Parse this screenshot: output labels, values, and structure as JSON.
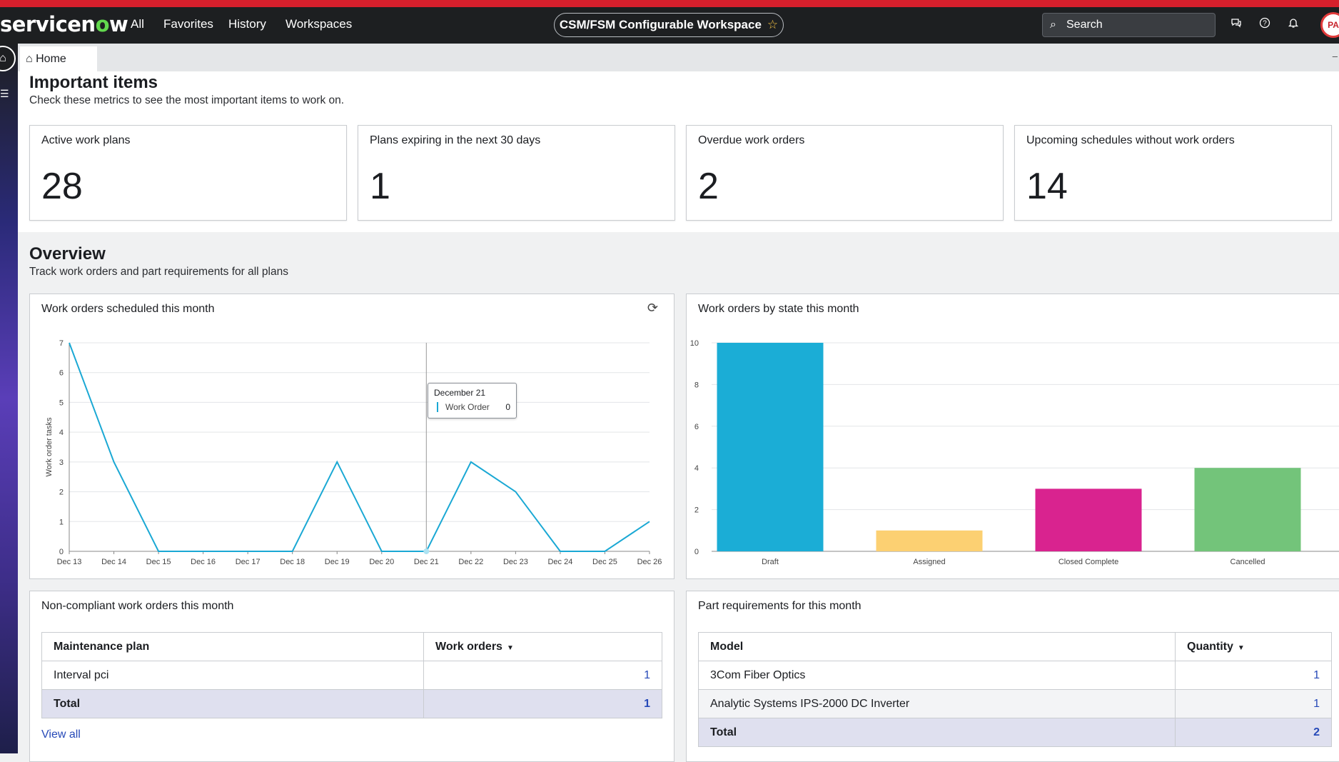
{
  "topbar": {
    "logo_text": "servicenow",
    "nav": [
      "All",
      "Favorites",
      "History",
      "Workspaces"
    ],
    "workspace": "CSM/FSM Configurable Workspace",
    "search_placeholder": "Search",
    "avatar_initials": "PA",
    "icons": [
      "chat-icon",
      "help-icon",
      "bell-icon"
    ]
  },
  "tabs": {
    "home": "Home"
  },
  "important": {
    "title": "Important items",
    "subtitle": "Check these metrics to see the most important items to work on.",
    "metrics": [
      {
        "label": "Active work plans",
        "value": "28"
      },
      {
        "label": "Plans expiring in the next 30 days",
        "value": "1"
      },
      {
        "label": "Overdue work orders",
        "value": "2"
      },
      {
        "label": "Upcoming schedules without work orders",
        "value": "14"
      }
    ]
  },
  "overview": {
    "title": "Overview",
    "subtitle": "Track work orders and part requirements for all plans"
  },
  "line_card": {
    "title": "Work orders scheduled this month"
  },
  "bar_card": {
    "title": "Work orders by state this month"
  },
  "tooltip": {
    "date": "December 21",
    "series": "Work Order",
    "value": "0"
  },
  "noncompliant": {
    "title": "Non-compliant work orders this month",
    "headers": [
      "Maintenance plan",
      "Work orders"
    ],
    "rows": [
      [
        "Interval pci",
        "1"
      ]
    ],
    "total": [
      "Total",
      "1"
    ],
    "view_all": "View all"
  },
  "parts": {
    "title": "Part requirements for this month",
    "headers": [
      "Model",
      "Quantity"
    ],
    "rows": [
      [
        "3Com Fiber Optics",
        "1"
      ],
      [
        "Analytic Systems IPS-2000 DC Inverter",
        "1"
      ]
    ],
    "total": [
      "Total",
      "2"
    ]
  },
  "chart_data": [
    {
      "type": "line",
      "title": "Work orders scheduled this month",
      "ylabel": "Work order tasks",
      "xlabel": "",
      "categories": [
        "Dec 13",
        "Dec 14",
        "Dec 15",
        "Dec 16",
        "Dec 17",
        "Dec 18",
        "Dec 19",
        "Dec 20",
        "Dec 21",
        "Dec 22",
        "Dec 23",
        "Dec 24",
        "Dec 25",
        "Dec 26"
      ],
      "series": [
        {
          "name": "Work Order",
          "values": [
            7,
            3,
            0,
            0,
            0,
            0,
            3,
            0,
            0,
            3,
            2,
            0,
            0,
            1
          ],
          "color": "#1aa8d4"
        }
      ],
      "ylim": [
        0,
        7
      ],
      "yticks": [
        0,
        1,
        2,
        3,
        4,
        5,
        6,
        7
      ],
      "grid": true
    },
    {
      "type": "bar",
      "title": "Work orders by state this month",
      "categories": [
        "Draft",
        "Assigned",
        "Closed Complete",
        "Cancelled"
      ],
      "values": [
        10,
        1,
        3,
        4
      ],
      "colors": [
        "#1badd6",
        "#fcd072",
        "#d9238f",
        "#73c47a"
      ],
      "ylim": [
        0,
        10
      ],
      "yticks": [
        0,
        2,
        4,
        6,
        8,
        10
      ],
      "grid": true
    }
  ]
}
